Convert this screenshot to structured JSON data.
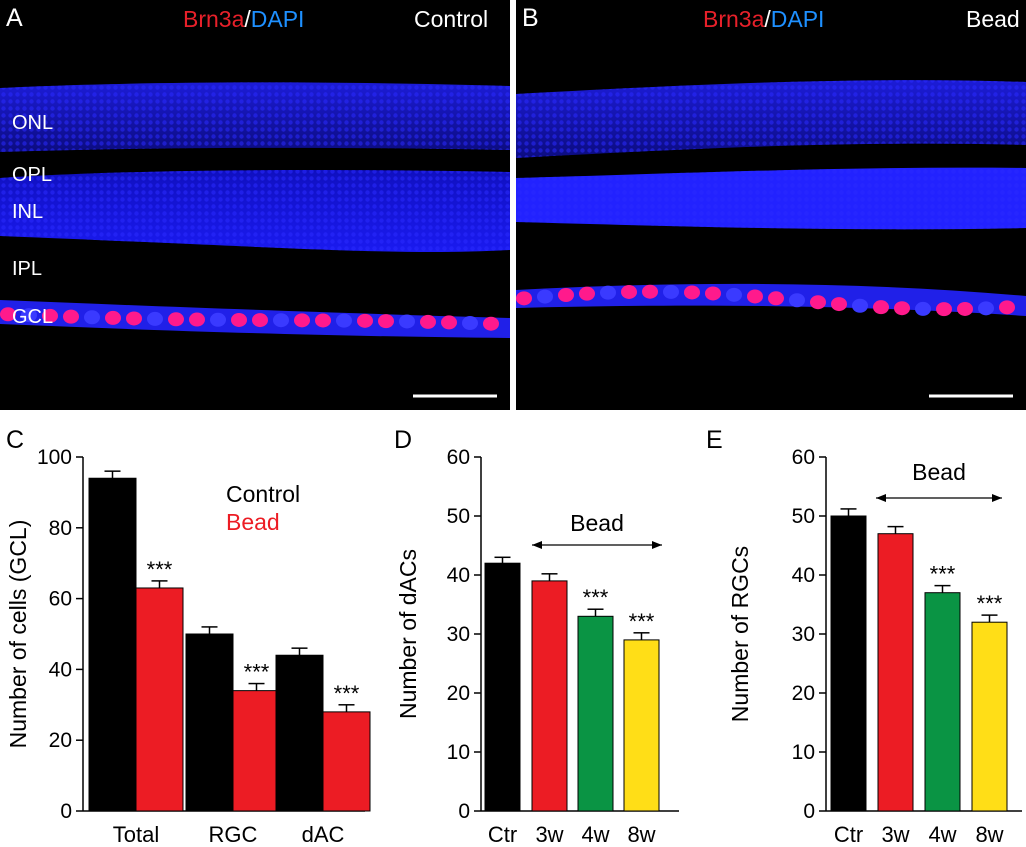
{
  "panels": {
    "A": {
      "letter": "A",
      "stain_red": "Brn3a",
      "stain_sep": "/",
      "stain_blue": "DAPI",
      "condition": "Control",
      "layers": [
        "ONL",
        "OPL",
        "INL",
        "IPL",
        "GCL"
      ]
    },
    "B": {
      "letter": "B",
      "stain_red": "Brn3a",
      "stain_sep": "/",
      "stain_blue": "DAPI",
      "condition": "Bead"
    }
  },
  "colors": {
    "control": "#000000",
    "bead": "#ec1c24",
    "w4": "#0a9444",
    "w8": "#ffde17",
    "dapi": "#1a1aff",
    "brn3a": "#ff1a8c",
    "stain_red_text": "#e8202a",
    "stain_blue_text": "#1e90ff"
  },
  "chart_data": [
    {
      "panel": "C",
      "type": "bar",
      "ylabel": "Number of cells (GCL)",
      "ylim": [
        0,
        100
      ],
      "yticks": [
        0,
        20,
        40,
        60,
        80,
        100
      ],
      "categories": [
        "Total",
        "RGC",
        "dAC"
      ],
      "series": [
        {
          "name": "Control",
          "values": [
            94,
            50,
            44
          ],
          "errors": [
            2,
            2,
            2
          ],
          "color": "#000000"
        },
        {
          "name": "Bead",
          "values": [
            63,
            34,
            28
          ],
          "errors": [
            2,
            2,
            2
          ],
          "color": "#ec1c24"
        }
      ],
      "annotations": [
        "***",
        "***",
        "***"
      ],
      "legend": [
        "Control",
        "Bead"
      ],
      "legend_position": "top-right"
    },
    {
      "panel": "D",
      "type": "bar",
      "ylabel": "Number of  dACs",
      "ylim": [
        0,
        60
      ],
      "yticks": [
        0,
        10,
        20,
        30,
        40,
        50,
        60
      ],
      "categories": [
        "Ctr",
        "3w",
        "4w",
        "8w"
      ],
      "values": [
        42,
        39,
        33,
        29
      ],
      "errors": [
        1,
        1.2,
        1.2,
        1.2
      ],
      "colors": [
        "#000000",
        "#ec1c24",
        "#0a9444",
        "#ffde17"
      ],
      "annotations": [
        "",
        "",
        "***",
        "***"
      ],
      "bracket_label": "Bead"
    },
    {
      "panel": "E",
      "type": "bar",
      "ylabel": "Number of  RGCs",
      "ylim": [
        0,
        60
      ],
      "yticks": [
        0,
        10,
        20,
        30,
        40,
        50,
        60
      ],
      "categories": [
        "Ctr",
        "3w",
        "4w",
        "8w"
      ],
      "values": [
        50,
        47,
        37,
        32
      ],
      "errors": [
        1.2,
        1.2,
        1.2,
        1.2
      ],
      "colors": [
        "#000000",
        "#ec1c24",
        "#0a9444",
        "#ffde17"
      ],
      "annotations": [
        "",
        "",
        "***",
        "***"
      ],
      "bracket_label": "Bead"
    }
  ]
}
